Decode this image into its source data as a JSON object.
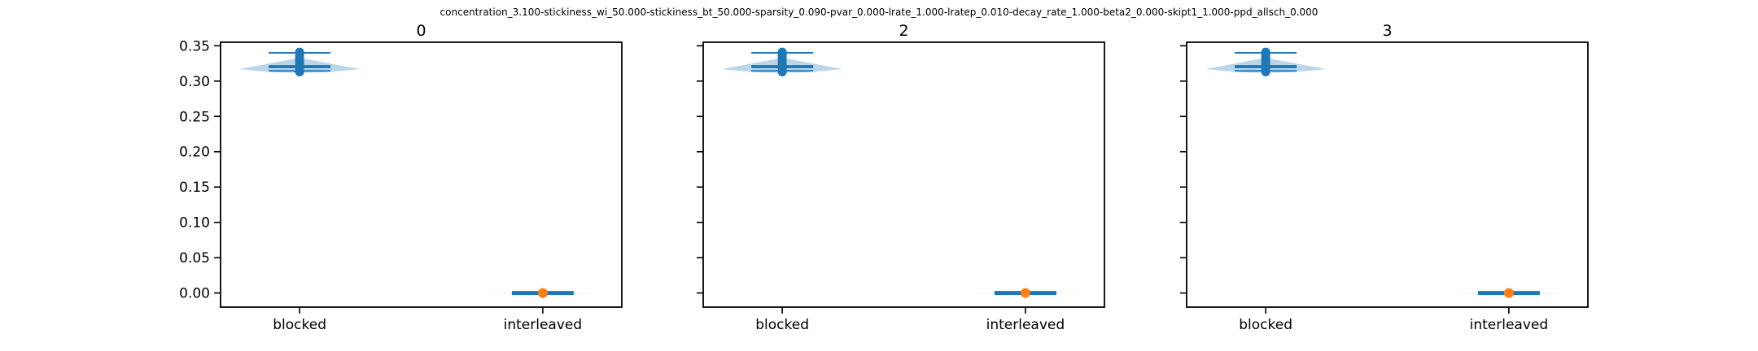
{
  "figure": {
    "suptitle": "concentration_3.100-stickiness_wi_50.000-stickiness_bt_50.000-sparsity_0.090-pvar_0.000-lrate_1.000-lratep_0.010-decay_rate_1.000-beta2_0.000-skipt1_1.000-ppd_allsch_0.000"
  },
  "chart_data": [
    {
      "type": "violin",
      "title": "0",
      "categories": [
        "blocked",
        "interleaved"
      ],
      "ylim": [
        -0.02,
        0.355
      ],
      "yticks": [
        0.0,
        0.05,
        0.1,
        0.15,
        0.2,
        0.25,
        0.3,
        0.35
      ],
      "ytick_labels": [
        "0.00",
        "0.05",
        "0.10",
        "0.15",
        "0.20",
        "0.25",
        "0.30",
        "0.35"
      ],
      "show_ytick_labels": true,
      "grid": false,
      "series": [
        {
          "category": "blocked",
          "min": 0.3145,
          "max": 0.34,
          "mean": 0.3215,
          "median": 0.3195,
          "points": [
            0.313,
            0.315,
            0.318,
            0.321,
            0.324,
            0.327,
            0.33,
            0.333,
            0.336,
            0.339,
            0.341
          ],
          "color": "#1f77b4",
          "body_color": "#1f77b4"
        },
        {
          "category": "interleaved",
          "min": -0.0005,
          "max": 0.0005,
          "mean": 0.0,
          "median": 0.0,
          "points": [
            0.0
          ],
          "color": "#1f77b4",
          "point_color": "#ff7f0e",
          "body_color": "#1f77b4"
        }
      ]
    },
    {
      "type": "violin",
      "title": "2",
      "categories": [
        "blocked",
        "interleaved"
      ],
      "ylim": [
        -0.02,
        0.355
      ],
      "yticks": [
        0.0,
        0.05,
        0.1,
        0.15,
        0.2,
        0.25,
        0.3,
        0.35
      ],
      "show_ytick_labels": false,
      "grid": false,
      "series": [
        {
          "category": "blocked",
          "min": 0.3145,
          "max": 0.34,
          "mean": 0.3215,
          "median": 0.3195,
          "points": [
            0.313,
            0.315,
            0.318,
            0.321,
            0.324,
            0.327,
            0.33,
            0.333,
            0.336,
            0.339,
            0.341
          ],
          "color": "#1f77b4",
          "body_color": "#1f77b4"
        },
        {
          "category": "interleaved",
          "min": -0.0005,
          "max": 0.0005,
          "mean": 0.0,
          "median": 0.0,
          "points": [
            0.0
          ],
          "color": "#1f77b4",
          "point_color": "#ff7f0e",
          "body_color": "#1f77b4"
        }
      ]
    },
    {
      "type": "violin",
      "title": "3",
      "categories": [
        "blocked",
        "interleaved"
      ],
      "ylim": [
        -0.02,
        0.355
      ],
      "yticks": [
        0.0,
        0.05,
        0.1,
        0.15,
        0.2,
        0.25,
        0.3,
        0.35
      ],
      "show_ytick_labels": false,
      "grid": false,
      "series": [
        {
          "category": "blocked",
          "min": 0.3145,
          "max": 0.34,
          "mean": 0.3215,
          "median": 0.3195,
          "points": [
            0.313,
            0.315,
            0.318,
            0.321,
            0.324,
            0.327,
            0.33,
            0.333,
            0.336,
            0.339,
            0.341
          ],
          "color": "#1f77b4",
          "body_color": "#1f77b4"
        },
        {
          "category": "interleaved",
          "min": -0.0005,
          "max": 0.001,
          "mean": 0.0005,
          "median": 0.0,
          "points": [
            0.0
          ],
          "color": "#1f77b4",
          "point_color": "#ff7f0e",
          "body_color": "#1f77b4"
        }
      ]
    }
  ]
}
